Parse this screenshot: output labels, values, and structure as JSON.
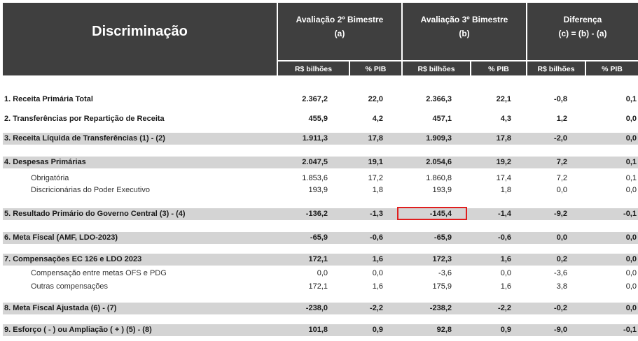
{
  "header": {
    "title": "Discriminação",
    "group_a_line1": "Avaliação 2º Bimestre",
    "group_a_line2": "(a)",
    "group_b_line1": "Avaliação 3º Bimestre",
    "group_b_line2": "(b)",
    "group_c_line1": "Diferença",
    "group_c_line2": "(c) = (b) - (a)",
    "col_bi": "R$ bilhões",
    "col_pib": "% PIB"
  },
  "rows": [
    {
      "label": "1. Receita Primária Total",
      "a_bi": "2.367,2",
      "a_pib": "22,0",
      "b_bi": "2.366,3",
      "b_pib": "22,1",
      "c_bi": "-0,8",
      "c_pib": "0,1"
    },
    {
      "label": "2. Transferências por Repartição de Receita",
      "a_bi": "455,9",
      "a_pib": "4,2",
      "b_bi": "457,1",
      "b_pib": "4,3",
      "c_bi": "1,2",
      "c_pib": "0,0"
    },
    {
      "label": "3. Receita Líquida de Transferências (1) - (2)",
      "a_bi": "1.911,3",
      "a_pib": "17,8",
      "b_bi": "1.909,3",
      "b_pib": "17,8",
      "c_bi": "-2,0",
      "c_pib": "0,0"
    },
    {
      "label": "4. Despesas Primárias",
      "a_bi": "2.047,5",
      "a_pib": "19,1",
      "b_bi": "2.054,6",
      "b_pib": "19,2",
      "c_bi": "7,2",
      "c_pib": "0,1"
    },
    {
      "label": "Obrigatória",
      "a_bi": "1.853,6",
      "a_pib": "17,2",
      "b_bi": "1.860,8",
      "b_pib": "17,4",
      "c_bi": "7,2",
      "c_pib": "0,1"
    },
    {
      "label": "Discricionárias do Poder Executivo",
      "a_bi": "193,9",
      "a_pib": "1,8",
      "b_bi": "193,9",
      "b_pib": "1,8",
      "c_bi": "0,0",
      "c_pib": "0,0"
    },
    {
      "label": "5. Resultado Primário do Governo Central (3) - (4)",
      "a_bi": "-136,2",
      "a_pib": "-1,3",
      "b_bi": "-145,4",
      "b_pib": "-1,4",
      "c_bi": "-9,2",
      "c_pib": "-0,1"
    },
    {
      "label": "6. Meta Fiscal (AMF, LDO-2023)",
      "a_bi": "-65,9",
      "a_pib": "-0,6",
      "b_bi": "-65,9",
      "b_pib": "-0,6",
      "c_bi": "0,0",
      "c_pib": "0,0"
    },
    {
      "label": "7. Compensações EC 126 e LDO 2023",
      "a_bi": "172,1",
      "a_pib": "1,6",
      "b_bi": "172,3",
      "b_pib": "1,6",
      "c_bi": "0,2",
      "c_pib": "0,0"
    },
    {
      "label": "Compensação entre metas OFS e PDG",
      "a_bi": "0,0",
      "a_pib": "0,0",
      "b_bi": "-3,6",
      "b_pib": "0,0",
      "c_bi": "-3,6",
      "c_pib": "0,0"
    },
    {
      "label": "Outras compensações",
      "a_bi": "172,1",
      "a_pib": "1,6",
      "b_bi": "175,9",
      "b_pib": "1,6",
      "c_bi": "3,8",
      "c_pib": "0,0"
    },
    {
      "label": "8. Meta Fiscal Ajustada (6) - (7)",
      "a_bi": "-238,0",
      "a_pib": "-2,2",
      "b_bi": "-238,2",
      "b_pib": "-2,2",
      "c_bi": "-0,2",
      "c_pib": "0,0"
    },
    {
      "label": "9. Esforço ( - ) ou Ampliação ( + ) (5) - (8)",
      "a_bi": "101,8",
      "a_pib": "0,9",
      "b_bi": "92,8",
      "b_pib": "0,9",
      "c_bi": "-9,0",
      "c_pib": "-0,1"
    }
  ]
}
